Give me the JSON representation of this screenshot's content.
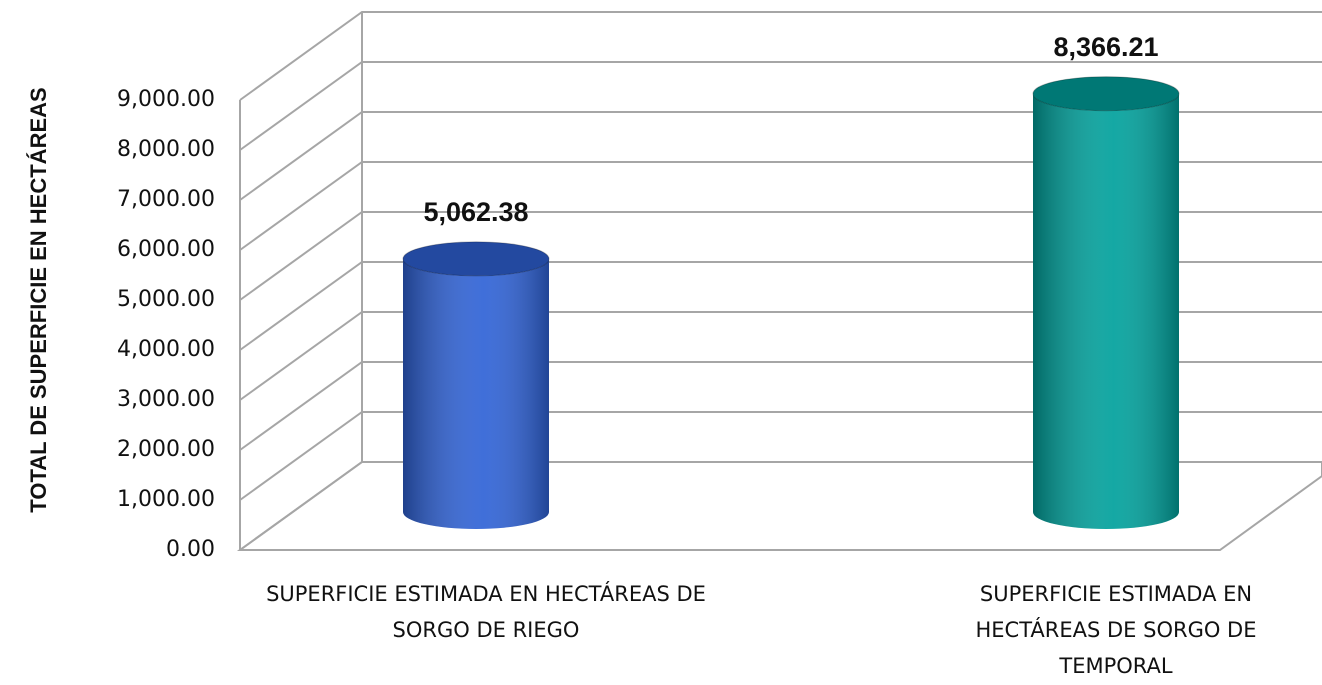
{
  "chart_data": {
    "type": "bar3d",
    "y_axis_label": "TOTAL DE SUPERFICIE EN HECTÁREAS",
    "categories": [
      "SUPERFICIE ESTIMADA EN HECTÁREAS DE SORGO DE RIEGO",
      "SUPERFICIE ESTIMADA EN HECTÁREAS DE SORGO DE TEMPORAL"
    ],
    "values": [
      5062.38,
      8366.21
    ],
    "value_labels": [
      "5,062.38",
      "8,366.21"
    ],
    "colors": [
      "#2f62d6",
      "#00a19c"
    ],
    "ylim": [
      0,
      9000
    ],
    "yticks": [
      {
        "value": 0,
        "label": "0.00"
      },
      {
        "value": 1000,
        "label": "1,000.00"
      },
      {
        "value": 2000,
        "label": "2,000.00"
      },
      {
        "value": 3000,
        "label": "3,000.00"
      },
      {
        "value": 4000,
        "label": "4,000.00"
      },
      {
        "value": 5000,
        "label": "5,000.00"
      },
      {
        "value": 6000,
        "label": "6,000.00"
      },
      {
        "value": 7000,
        "label": "7,000.00"
      },
      {
        "value": 8000,
        "label": "8,000.00"
      },
      {
        "value": 9000,
        "label": "9,000.00"
      }
    ],
    "grid": true
  }
}
